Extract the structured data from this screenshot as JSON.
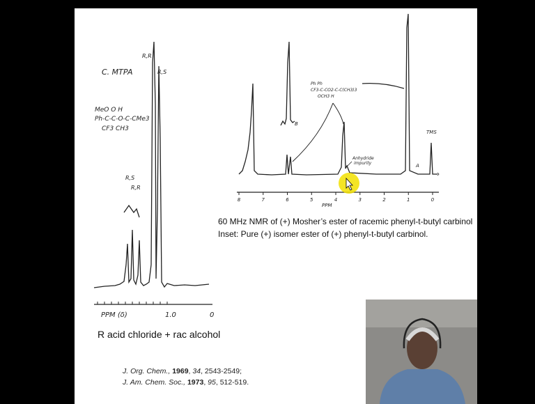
{
  "left_spectrum": {
    "title": "C. MTPA",
    "structure": [
      "MeO O   H",
      "Ph-C-C-O-C-CMe3",
      "CF3    CH3"
    ],
    "peak_labels": [
      "R,R",
      "R,S",
      "R,S",
      "R,R"
    ],
    "axis_label": "PPM (δ)",
    "axis_ticks": [
      "1.0",
      "0"
    ],
    "caption": "R acid chloride + rac alcohol"
  },
  "citations": [
    [
      {
        "text": "J. Org. Chem., ",
        "style": "italic"
      },
      {
        "text": "1969",
        "style": "bold"
      },
      {
        "text": ", ",
        "style": "normal"
      },
      {
        "text": "34",
        "style": "italic"
      },
      {
        "text": ", 2543-2549;",
        "style": "normal"
      }
    ],
    [
      {
        "text": "J. Am. Chem. Soc., ",
        "style": "italic"
      },
      {
        "text": "1973",
        "style": "bold"
      },
      {
        "text": ", ",
        "style": "normal"
      },
      {
        "text": "95",
        "style": "italic"
      },
      {
        "text": ", 512-519.",
        "style": "normal"
      }
    ]
  ],
  "right_spectrum": {
    "structure": [
      "Ph      Ph",
      "CF3-C-CO2-C-C(CH3)3",
      "OCH3    H"
    ],
    "labels": [
      "TMS",
      "A",
      "B",
      "Anhydride",
      "impurity"
    ],
    "axis_ticks": [
      "8",
      "7",
      "6",
      "5",
      "4",
      "3",
      "2",
      "1",
      "0"
    ],
    "axis_label": "PPM",
    "caption": [
      "60 MHz NMR of (+) Mosher’s ester of racemic phenyl-t-butyl carbinol",
      "Inset:  Pure (+) isomer ester of (+) phenyl-t-butyl carbinol."
    ]
  }
}
